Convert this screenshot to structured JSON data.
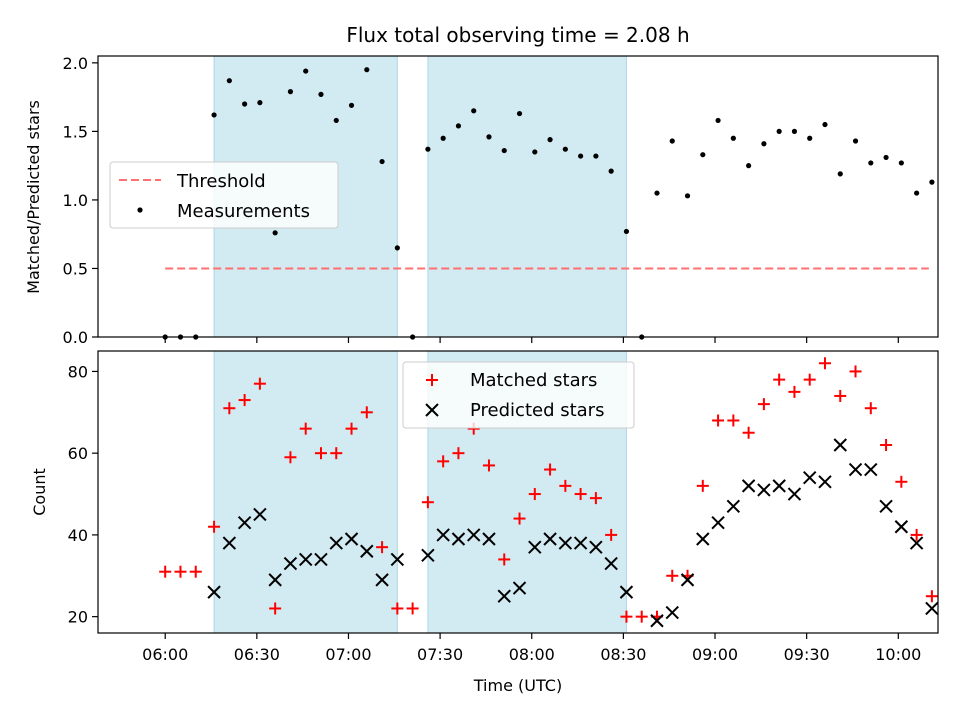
{
  "chart_data": {
    "type": "scatter",
    "title": "Flux total observing time = 2.08 h",
    "xlabel": "Time (UTC)",
    "x_tick_labels": [
      "06:00",
      "06:30",
      "07:00",
      "07:30",
      "08:00",
      "08:30",
      "09:00",
      "09:30",
      "10:00"
    ],
    "shaded_intervals": [
      [
        "06:16",
        "07:16"
      ],
      [
        "07:26",
        "08:31"
      ]
    ],
    "shade_color": "#add8e6",
    "panels": [
      {
        "ylabel": "Matched/Predicted stars",
        "ylim": [
          0,
          2.05
        ],
        "y_ticks": [
          "0.0",
          "0.5",
          "1.0",
          "1.5",
          "2.0"
        ],
        "threshold": {
          "name": "Threshold",
          "value": 0.5,
          "x_range": [
            "06:00",
            "10:10"
          ],
          "color": "#ff7070"
        },
        "legend": {
          "position": "center-left",
          "entries": [
            "Threshold",
            "Measurements"
          ]
        },
        "series": [
          {
            "name": "Measurements",
            "color": "#000000",
            "marker": "dot",
            "x": [
              "06:00",
              "06:05",
              "06:10",
              "06:16",
              "06:21",
              "06:26",
              "06:31",
              "06:36",
              "06:41",
              "06:46",
              "06:51",
              "06:56",
              "07:01",
              "07:06",
              "07:11",
              "07:16",
              "07:21",
              "07:26",
              "07:31",
              "07:36",
              "07:41",
              "07:46",
              "07:51",
              "07:56",
              "08:01",
              "08:06",
              "08:11",
              "08:16",
              "08:21",
              "08:26",
              "08:31",
              "08:36",
              "08:41",
              "08:46",
              "08:51",
              "08:56",
              "09:01",
              "09:06",
              "09:11",
              "09:16",
              "09:21",
              "09:26",
              "09:31",
              "09:36",
              "09:41",
              "09:46",
              "09:51",
              "09:56",
              "10:01",
              "10:06",
              "10:11"
            ],
            "y": [
              0.0,
              0.0,
              0.0,
              1.62,
              1.87,
              1.7,
              1.71,
              0.76,
              1.79,
              1.94,
              1.77,
              1.58,
              1.69,
              1.95,
              1.28,
              0.65,
              0.0,
              1.37,
              1.45,
              1.54,
              1.65,
              1.46,
              1.36,
              1.63,
              1.35,
              1.44,
              1.37,
              1.32,
              1.32,
              1.21,
              0.77,
              0.0,
              1.05,
              1.43,
              1.03,
              1.33,
              1.58,
              1.45,
              1.25,
              1.41,
              1.5,
              1.5,
              1.45,
              1.55,
              1.19,
              1.43,
              1.27,
              1.31,
              1.27,
              1.05,
              1.13
            ]
          }
        ]
      },
      {
        "ylabel": "Count",
        "ylim": [
          16,
          85
        ],
        "y_ticks": [
          "20",
          "40",
          "60",
          "80"
        ],
        "legend": {
          "position": "top-center",
          "entries": [
            "Matched stars",
            "Predicted stars"
          ]
        },
        "series": [
          {
            "name": "Matched stars",
            "color": "#ff0000",
            "marker": "plus",
            "x": [
              "06:00",
              "06:05",
              "06:10",
              "06:16",
              "06:21",
              "06:26",
              "06:31",
              "06:36",
              "06:41",
              "06:46",
              "06:51",
              "06:56",
              "07:01",
              "07:06",
              "07:11",
              "07:16",
              "07:21",
              "07:26",
              "07:31",
              "07:36",
              "07:41",
              "07:46",
              "07:51",
              "07:56",
              "08:01",
              "08:06",
              "08:11",
              "08:16",
              "08:21",
              "08:26",
              "08:31",
              "08:36",
              "08:41",
              "08:46",
              "08:51",
              "08:56",
              "09:01",
              "09:06",
              "09:11",
              "09:16",
              "09:21",
              "09:26",
              "09:31",
              "09:36",
              "09:41",
              "09:46",
              "09:51",
              "09:56",
              "10:01",
              "10:06",
              "10:11"
            ],
            "y": [
              31,
              31,
              31,
              42,
              71,
              73,
              77,
              22,
              59,
              66,
              60,
              60,
              66,
              70,
              37,
              22,
              22,
              48,
              58,
              60,
              66,
              57,
              34,
              44,
              50,
              56,
              52,
              50,
              49,
              40,
              20,
              20,
              20,
              30,
              30,
              52,
              68,
              68,
              65,
              72,
              78,
              75,
              78,
              82,
              74,
              80,
              71,
              62,
              53,
              40,
              25
            ]
          },
          {
            "name": "Predicted stars",
            "color": "#000000",
            "marker": "x",
            "x": [
              "06:16",
              "06:21",
              "06:26",
              "06:31",
              "06:36",
              "06:41",
              "06:46",
              "06:51",
              "06:56",
              "07:01",
              "07:06",
              "07:11",
              "07:16",
              "07:26",
              "07:31",
              "07:36",
              "07:41",
              "07:46",
              "07:51",
              "07:56",
              "08:01",
              "08:06",
              "08:11",
              "08:16",
              "08:21",
              "08:26",
              "08:31",
              "08:41",
              "08:46",
              "08:51",
              "08:56",
              "09:01",
              "09:06",
              "09:11",
              "09:16",
              "09:21",
              "09:26",
              "09:31",
              "09:36",
              "09:41",
              "09:46",
              "09:51",
              "09:56",
              "10:01",
              "10:06",
              "10:11"
            ],
            "y": [
              26,
              38,
              43,
              45,
              29,
              33,
              34,
              34,
              38,
              39,
              36,
              29,
              34,
              35,
              40,
              39,
              40,
              39,
              25,
              27,
              37,
              39,
              38,
              38,
              37,
              33,
              26,
              19,
              21,
              29,
              39,
              43,
              47,
              52,
              51,
              52,
              50,
              54,
              53,
              62,
              56,
              56,
              47,
              42,
              38,
              22
            ]
          }
        ]
      }
    ]
  }
}
